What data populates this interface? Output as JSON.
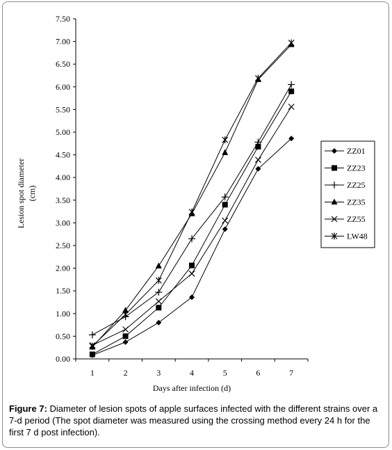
{
  "chart_data": {
    "type": "line",
    "x": [
      1,
      2,
      3,
      4,
      5,
      6,
      7
    ],
    "xlabel": "Days after infection (d)",
    "ylabel_line1": "Lesion spot diameter",
    "ylabel_line2": "(cm)",
    "xlim": [
      0.5,
      7.5
    ],
    "ylim": [
      0,
      7.5
    ],
    "yticks": [
      "0.00",
      "0.50",
      "1.00",
      "1.50",
      "2.00",
      "2.50",
      "3.00",
      "3.50",
      "4.00",
      "4.50",
      "5.00",
      "5.50",
      "6.00",
      "6.50",
      "7.00",
      "7.50"
    ],
    "xticks": [
      "1",
      "2",
      "3",
      "4",
      "5",
      "6",
      "7"
    ],
    "grid": false,
    "legend_position": "right",
    "line_color": "#000000",
    "series": [
      {
        "name": "ZZ01",
        "marker": "diamond",
        "values": [
          0.08,
          0.37,
          0.8,
          1.36,
          2.86,
          4.19,
          4.86
        ]
      },
      {
        "name": "ZZ23",
        "marker": "square",
        "values": [
          0.1,
          0.5,
          1.13,
          2.06,
          3.4,
          4.68,
          5.9
        ]
      },
      {
        "name": "ZZ25",
        "marker": "plus",
        "values": [
          0.53,
          0.93,
          1.47,
          2.65,
          3.57,
          4.78,
          6.05
        ]
      },
      {
        "name": "ZZ35",
        "marker": "triangle",
        "values": [
          0.26,
          1.07,
          2.05,
          3.2,
          4.55,
          6.16,
          6.93
        ]
      },
      {
        "name": "ZZ55",
        "marker": "x",
        "values": [
          0.3,
          0.65,
          1.27,
          1.88,
          3.05,
          4.39,
          5.56
        ]
      },
      {
        "name": "LW48",
        "marker": "asterisk",
        "values": [
          0.28,
          0.98,
          1.73,
          3.24,
          4.83,
          6.19,
          6.97
        ]
      }
    ]
  },
  "caption": {
    "label": "Figure 7:",
    "text": " Diameter of lesion spots of apple surfaces infected with the different strains over a 7-d period (The spot diameter was measured using the crossing method every 24 h for the first 7 d post infection)."
  }
}
